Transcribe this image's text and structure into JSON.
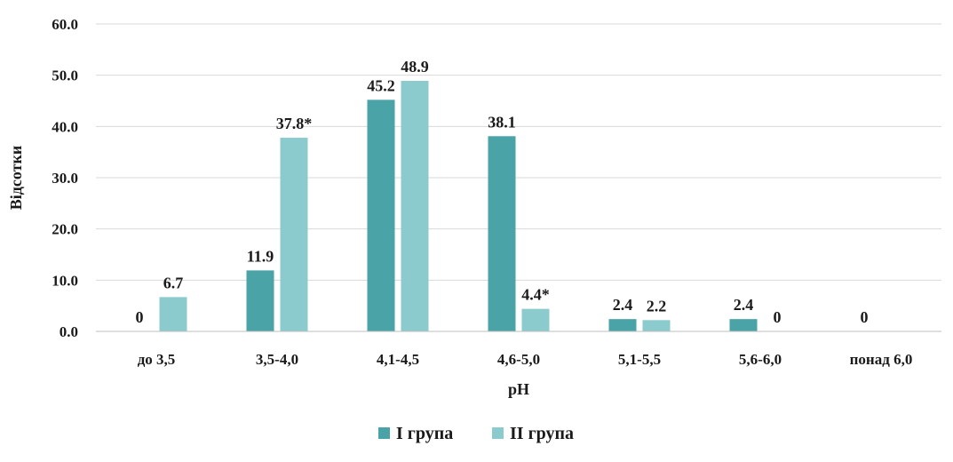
{
  "chart_data": {
    "type": "bar",
    "xlabel": "pH",
    "ylabel": "Відсотки",
    "ylim": [
      0,
      60
    ],
    "yticks": [
      "0.0",
      "10.0",
      "20.0",
      "30.0",
      "40.0",
      "50.0",
      "60.0"
    ],
    "grid": true,
    "legend": "bottom",
    "categories": [
      "до 3,5",
      "3,5-4,0",
      "4,1-4,5",
      "4,6-5,0",
      "5,1-5,5",
      "5,6-6,0",
      "понад 6,0"
    ],
    "series": [
      {
        "name": "I група",
        "color": "#4aa3a6",
        "values": [
          0,
          11.9,
          45.2,
          38.1,
          2.4,
          2.4,
          0
        ],
        "labels": [
          "0",
          "11.9",
          "45.2",
          "38.1",
          "2.4",
          "2.4",
          "0"
        ]
      },
      {
        "name": "II група",
        "color": "#8ccbcd",
        "values": [
          6.7,
          37.8,
          48.9,
          4.4,
          2.2,
          0,
          null
        ],
        "labels": [
          "6.7",
          "37.8*",
          "48.9",
          "4.4*",
          "2.2",
          "0",
          ""
        ]
      }
    ]
  }
}
